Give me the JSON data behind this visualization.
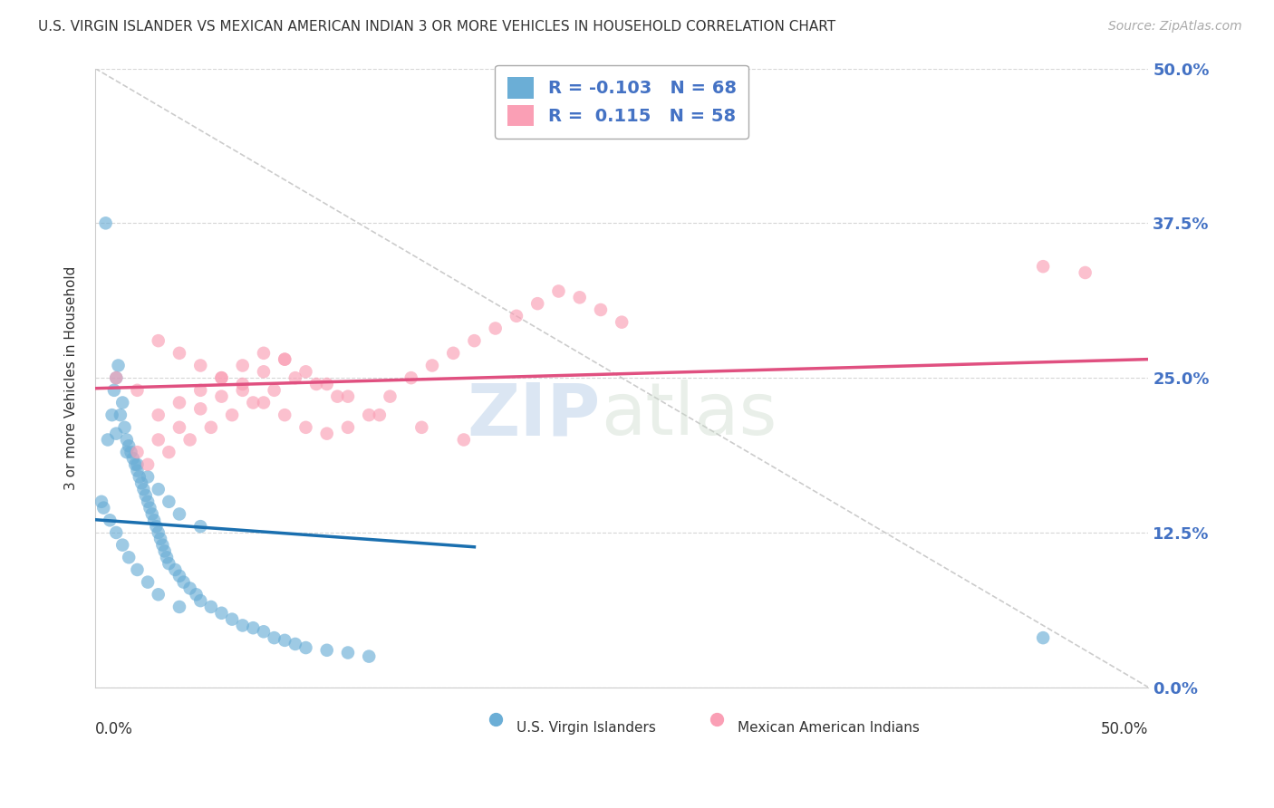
{
  "title": "U.S. VIRGIN ISLANDER VS MEXICAN AMERICAN INDIAN 3 OR MORE VEHICLES IN HOUSEHOLD CORRELATION CHART",
  "source": "Source: ZipAtlas.com",
  "ylabel": "3 or more Vehicles in Household",
  "ytick_values": [
    0.0,
    12.5,
    25.0,
    37.5,
    50.0
  ],
  "xmin": 0.0,
  "xmax": 50.0,
  "ymin": 0.0,
  "ymax": 50.0,
  "blue_color": "#6baed6",
  "pink_color": "#fa9fb5",
  "blue_line_color": "#1a6faf",
  "pink_line_color": "#e05080",
  "legend_blue_r": -0.103,
  "legend_blue_n": 68,
  "legend_pink_r": 0.115,
  "legend_pink_n": 58,
  "watermark_zip": "ZIP",
  "watermark_atlas": "atlas",
  "background_color": "#ffffff",
  "grid_color": "#cccccc",
  "blue_points_x": [
    0.3,
    0.5,
    0.6,
    0.8,
    0.9,
    1.0,
    1.1,
    1.2,
    1.3,
    1.4,
    1.5,
    1.6,
    1.7,
    1.8,
    1.9,
    2.0,
    2.1,
    2.2,
    2.3,
    2.4,
    2.5,
    2.6,
    2.7,
    2.8,
    2.9,
    3.0,
    3.1,
    3.2,
    3.3,
    3.4,
    3.5,
    3.8,
    4.0,
    4.2,
    4.5,
    4.8,
    5.0,
    5.5,
    6.0,
    6.5,
    7.0,
    7.5,
    8.0,
    8.5,
    9.0,
    9.5,
    10.0,
    11.0,
    12.0,
    13.0,
    1.0,
    1.5,
    2.0,
    2.5,
    3.0,
    3.5,
    4.0,
    5.0,
    0.4,
    0.7,
    1.0,
    1.3,
    1.6,
    2.0,
    2.5,
    3.0,
    4.0,
    45.0
  ],
  "blue_points_y": [
    15.0,
    37.5,
    20.0,
    22.0,
    24.0,
    25.0,
    26.0,
    22.0,
    23.0,
    21.0,
    20.0,
    19.5,
    19.0,
    18.5,
    18.0,
    17.5,
    17.0,
    16.5,
    16.0,
    15.5,
    15.0,
    14.5,
    14.0,
    13.5,
    13.0,
    12.5,
    12.0,
    11.5,
    11.0,
    10.5,
    10.0,
    9.5,
    9.0,
    8.5,
    8.0,
    7.5,
    7.0,
    6.5,
    6.0,
    5.5,
    5.0,
    4.8,
    4.5,
    4.0,
    3.8,
    3.5,
    3.2,
    3.0,
    2.8,
    2.5,
    20.5,
    19.0,
    18.0,
    17.0,
    16.0,
    15.0,
    14.0,
    13.0,
    14.5,
    13.5,
    12.5,
    11.5,
    10.5,
    9.5,
    8.5,
    7.5,
    6.5,
    4.0
  ],
  "pink_points_x": [
    1.0,
    2.0,
    3.0,
    4.0,
    5.0,
    6.0,
    7.0,
    8.0,
    9.0,
    10.0,
    11.0,
    12.0,
    13.0,
    14.0,
    15.0,
    16.0,
    17.0,
    18.0,
    19.0,
    20.0,
    21.0,
    22.0,
    23.0,
    24.0,
    25.0,
    3.0,
    4.0,
    5.0,
    6.0,
    7.0,
    8.0,
    9.0,
    10.0,
    11.0,
    12.0,
    2.0,
    3.0,
    4.0,
    5.0,
    6.0,
    7.0,
    8.0,
    9.0,
    47.0,
    2.5,
    3.5,
    4.5,
    5.5,
    6.5,
    7.5,
    8.5,
    9.5,
    10.5,
    11.5,
    13.5,
    15.5,
    17.5,
    45.0
  ],
  "pink_points_y": [
    25.0,
    24.0,
    28.0,
    27.0,
    26.0,
    25.0,
    24.0,
    23.0,
    22.0,
    21.0,
    20.5,
    21.0,
    22.0,
    23.5,
    25.0,
    26.0,
    27.0,
    28.0,
    29.0,
    30.0,
    31.0,
    32.0,
    31.5,
    30.5,
    29.5,
    22.0,
    23.0,
    24.0,
    25.0,
    26.0,
    27.0,
    26.5,
    25.5,
    24.5,
    23.5,
    19.0,
    20.0,
    21.0,
    22.5,
    23.5,
    24.5,
    25.5,
    26.5,
    33.5,
    18.0,
    19.0,
    20.0,
    21.0,
    22.0,
    23.0,
    24.0,
    25.0,
    24.5,
    23.5,
    22.0,
    21.0,
    20.0,
    34.0
  ]
}
